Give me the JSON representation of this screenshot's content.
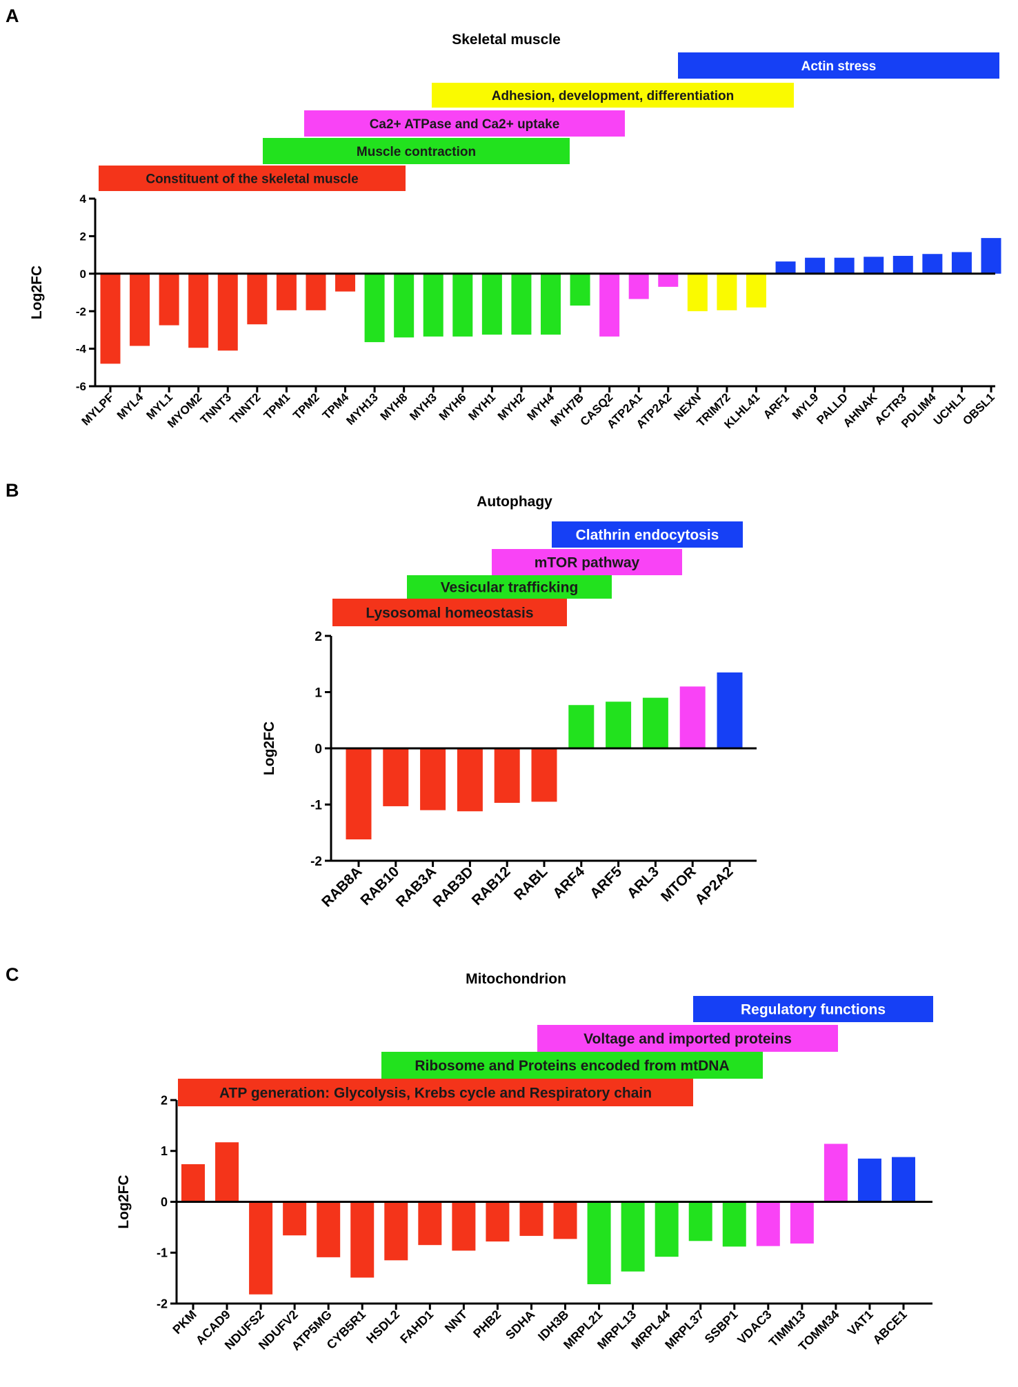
{
  "chart_data": [
    {
      "panel_letter": "A",
      "type": "bar",
      "title": "Skeletal muscle",
      "ylabel": "Log2FC",
      "ylim": [
        -6,
        4
      ],
      "yticks": [
        -6,
        -4,
        -2,
        0,
        2,
        4
      ],
      "categories": [
        "MYLPF",
        "MYL4",
        "MYL1",
        "MYOM2",
        "TNNT3",
        "TNNT2",
        "TPM1",
        "TPM2",
        "TPM4",
        "MYH13",
        "MYH8",
        "MYH3",
        "MYH6",
        "MYH1",
        "MYH2",
        "MYH4",
        "MYH7B",
        "CASQ2",
        "ATP2A1",
        "ATP2A2",
        "NEXN",
        "TRIM72",
        "KLHL41",
        "ARF1",
        "MYL9",
        "PALLD",
        "AHNAK",
        "ACTR3",
        "PDLIM4",
        "UCHL1",
        "OBSL1"
      ],
      "values": [
        -4.8,
        -3.85,
        -2.75,
        -3.95,
        -4.1,
        -2.7,
        -1.95,
        -1.95,
        -0.95,
        -3.65,
        -3.4,
        -3.35,
        -3.35,
        -3.25,
        -3.25,
        -3.25,
        -1.7,
        -3.35,
        -1.35,
        -0.7,
        -2.0,
        -1.95,
        -1.8,
        0.65,
        0.85,
        0.85,
        0.9,
        0.95,
        1.05,
        1.15,
        1.9
      ],
      "bar_colors": [
        "#f4341a",
        "#f4341a",
        "#f4341a",
        "#f4341a",
        "#f4341a",
        "#f4341a",
        "#f4341a",
        "#f4341a",
        "#f4341a",
        "#22e21e",
        "#22e21e",
        "#22e21e",
        "#22e21e",
        "#22e21e",
        "#22e21e",
        "#22e21e",
        "#22e21e",
        "#f943f6",
        "#f943f6",
        "#f943f6",
        "#fafa00",
        "#fafa00",
        "#fafa00",
        "#1640f5",
        "#1640f5",
        "#1640f5",
        "#1640f5",
        "#1640f5",
        "#1640f5",
        "#1640f5",
        "#1640f5"
      ],
      "groups": [
        {
          "label": "Actin stress",
          "color": "#1640f5",
          "text_color": "#ffffff"
        },
        {
          "label": "Adhesion, development, differentiation",
          "color": "#fafa00",
          "text_color": "#1a1a1a"
        },
        {
          "label": "Ca2+ ATPase and Ca2+ uptake",
          "color": "#f943f6",
          "text_color": "#1a1a1a"
        },
        {
          "label": "Muscle contraction",
          "color": "#22e21e",
          "text_color": "#1a1a1a"
        },
        {
          "label": "Constituent of the skeletal muscle",
          "color": "#f4341a",
          "text_color": "#1a1a1a"
        }
      ]
    },
    {
      "panel_letter": "B",
      "type": "bar",
      "title": "Autophagy",
      "ylabel": "Log2FC",
      "ylim": [
        -2,
        2
      ],
      "yticks": [
        -2,
        -1,
        0,
        1,
        2
      ],
      "categories": [
        "RAB8A",
        "RAB10",
        "RAB3A",
        "RAB3D",
        "RAB12",
        "RABL",
        "ARF4",
        "ARF5",
        "ARL3",
        "MTOR",
        "AP2A2"
      ],
      "values": [
        -1.62,
        -1.03,
        -1.1,
        -1.12,
        -0.97,
        -0.95,
        0.77,
        0.83,
        0.9,
        1.1,
        1.35
      ],
      "bar_colors": [
        "#f4341a",
        "#f4341a",
        "#f4341a",
        "#f4341a",
        "#f4341a",
        "#f4341a",
        "#22e21e",
        "#22e21e",
        "#22e21e",
        "#f943f6",
        "#1640f5"
      ],
      "groups": [
        {
          "label": "Clathrin endocytosis",
          "color": "#1640f5",
          "text_color": "#ffffff"
        },
        {
          "label": "mTOR pathway",
          "color": "#f943f6",
          "text_color": "#1a1a1a"
        },
        {
          "label": "Vesicular trafficking",
          "color": "#22e21e",
          "text_color": "#1a1a1a"
        },
        {
          "label": "Lysosomal homeostasis",
          "color": "#f4341a",
          "text_color": "#1a1a1a"
        }
      ]
    },
    {
      "panel_letter": "C",
      "type": "bar",
      "title": "Mitochondrion",
      "ylabel": "Log2FC",
      "ylim": [
        -2,
        2
      ],
      "yticks": [
        -2,
        -1,
        0,
        1,
        2
      ],
      "categories": [
        "PKM",
        "ACAD9",
        "NDUFS2",
        "NDUFV2",
        "ATP5MG",
        "CYB5R1",
        "HSDL2",
        "FAHD1",
        "NNT",
        "PHB2",
        "SDHA",
        "IDH3B",
        "MRPL21",
        "MRPL13",
        "MRPL44",
        "MRPL37",
        "SSBP1",
        "VDAC3",
        "TIMM13",
        "TOMM34",
        "VAT1",
        "ABCE1"
      ],
      "values": [
        0.74,
        1.17,
        -1.82,
        -0.66,
        -1.09,
        -1.49,
        -1.15,
        -0.85,
        -0.96,
        -0.78,
        -0.67,
        -0.73,
        -1.62,
        -1.37,
        -1.08,
        -0.77,
        -0.88,
        -0.87,
        -0.82,
        1.14,
        0.85,
        0.88
      ],
      "bar_colors": [
        "#f4341a",
        "#f4341a",
        "#f4341a",
        "#f4341a",
        "#f4341a",
        "#f4341a",
        "#f4341a",
        "#f4341a",
        "#f4341a",
        "#f4341a",
        "#f4341a",
        "#f4341a",
        "#22e21e",
        "#22e21e",
        "#22e21e",
        "#22e21e",
        "#22e21e",
        "#f943f6",
        "#f943f6",
        "#f943f6",
        "#1640f5",
        "#1640f5"
      ],
      "groups": [
        {
          "label": "Regulatory functions",
          "color": "#1640f5",
          "text_color": "#ffffff"
        },
        {
          "label": "Voltage and imported proteins",
          "color": "#f943f6",
          "text_color": "#1a1a1a"
        },
        {
          "label": "Ribosome and Proteins encoded from mtDNA",
          "color": "#22e21e",
          "text_color": "#1a1a1a"
        },
        {
          "label": "ATP generation: Glycolysis, Krebs cycle and Respiratory chain",
          "color": "#f4341a",
          "text_color": "#1a1a1a"
        }
      ]
    }
  ]
}
